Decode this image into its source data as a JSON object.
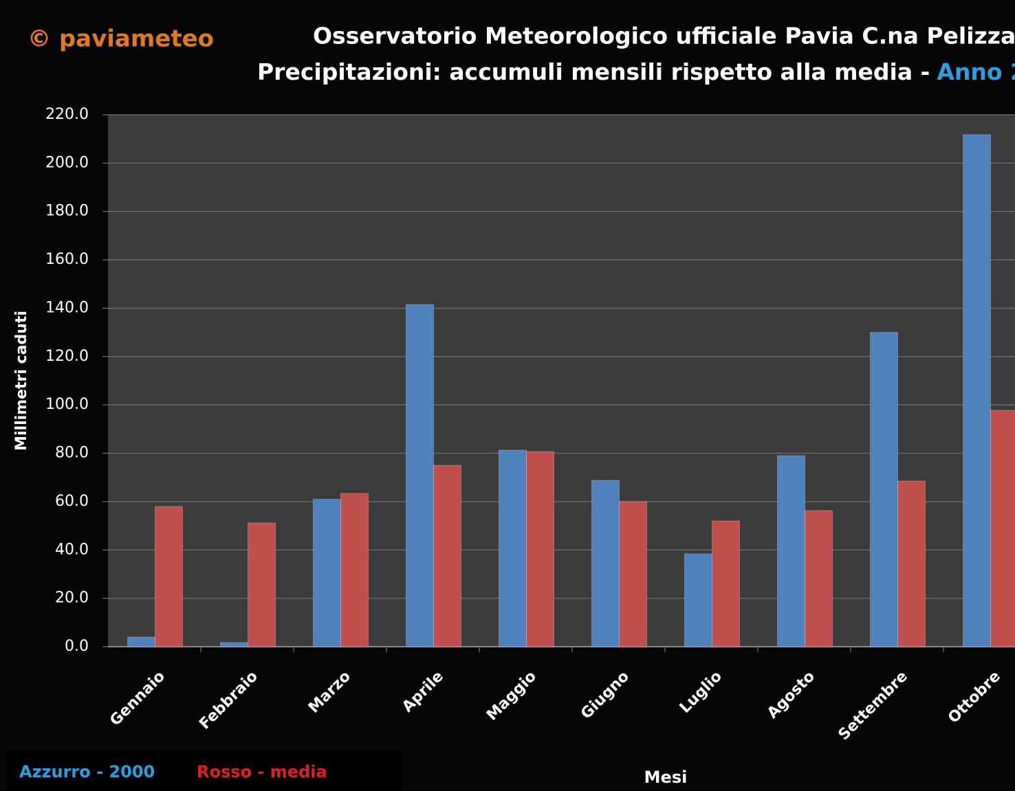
{
  "chart_data": {
    "type": "bar",
    "watermark": "© paviameteo",
    "title": "Osservatorio Meteorologico ufficiale Pavia C.na Pelizza",
    "subtitle": "Precipitazioni: accumuli mensili rispetto alla media -",
    "subtitle_highlight": "Anno 2",
    "y_label": "Millimetri caduti",
    "x_label": "Mesi",
    "categories": [
      "Gennaio",
      "Febbraio",
      "Marzo",
      "Aprile",
      "Maggio",
      "Giugno",
      "Luglio",
      "Agosto",
      "Settembre",
      "Ottobre"
    ],
    "series": [
      {
        "name": "Azzurro - 2000",
        "color": "#4f81bd",
        "values": [
          4,
          1.7,
          61,
          141.5,
          81.3,
          68.8,
          38.4,
          79,
          130,
          211.8
        ]
      },
      {
        "name": "Rosso - media",
        "color": "#c0504d",
        "values": [
          58,
          51.2,
          63.4,
          75,
          80.7,
          60,
          52,
          56.3,
          68.5,
          97.8
        ]
      }
    ],
    "ylim": [
      0,
      220
    ],
    "yticks": [
      {
        "value": 0,
        "label": "0.0"
      },
      {
        "value": 20,
        "label": "20.0"
      },
      {
        "value": 40,
        "label": "40.0"
      },
      {
        "value": 60,
        "label": "60.0"
      },
      {
        "value": 80,
        "label": "80.0"
      },
      {
        "value": 100,
        "label": "100.0"
      },
      {
        "value": 120,
        "label": "120.0"
      },
      {
        "value": 140,
        "label": "140.0"
      },
      {
        "value": 160,
        "label": "160.0"
      },
      {
        "value": 180,
        "label": "180.0"
      },
      {
        "value": 200,
        "label": "200.0"
      },
      {
        "value": 220,
        "label": "220.0"
      }
    ],
    "grid": true
  }
}
